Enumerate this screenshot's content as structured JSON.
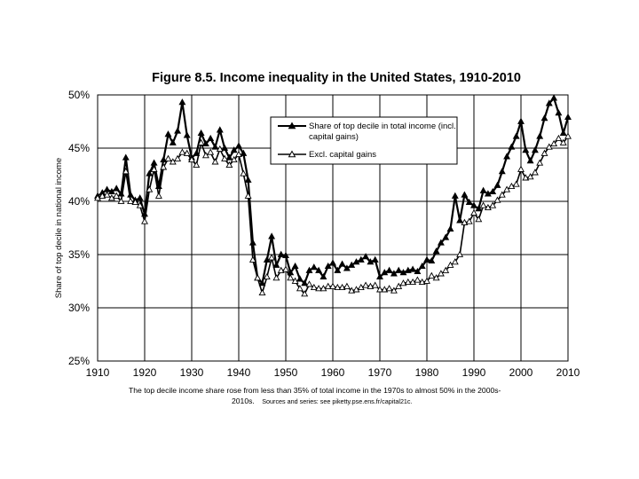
{
  "chart_data": {
    "type": "line",
    "title": "Figure 8.5. Income inequality in the United States, 1910-2010",
    "xlabel": "",
    "ylabel": "Share of top decile in national income",
    "xlim": [
      1910,
      2010
    ],
    "ylim": [
      25,
      50
    ],
    "x_ticks": [
      "1910",
      "1920",
      "1930",
      "1940",
      "1950",
      "1960",
      "1970",
      "1980",
      "1990",
      "2000",
      "2010"
    ],
    "y_ticks": [
      "25%",
      "30%",
      "35%",
      "40%",
      "45%",
      "50%"
    ],
    "grid": true,
    "legend_position": "top-center",
    "caption": {
      "line1": "The top decile income share rose from less than 35% of total income in the 1970s to almost 50% in the 2000s-",
      "line2_main": "2010s.",
      "line2_source": "Sources and series: see piketty.pse.ens.fr/capital21c."
    },
    "x": [
      1910,
      1911,
      1912,
      1913,
      1914,
      1915,
      1916,
      1917,
      1918,
      1919,
      1920,
      1921,
      1922,
      1923,
      1924,
      1925,
      1926,
      1927,
      1928,
      1929,
      1930,
      1931,
      1932,
      1933,
      1934,
      1935,
      1936,
      1937,
      1938,
      1939,
      1940,
      1941,
      1942,
      1943,
      1944,
      1945,
      1946,
      1947,
      1948,
      1949,
      1950,
      1951,
      1952,
      1953,
      1954,
      1955,
      1956,
      1957,
      1958,
      1959,
      1960,
      1961,
      1962,
      1963,
      1964,
      1965,
      1966,
      1967,
      1968,
      1969,
      1970,
      1971,
      1972,
      1973,
      1974,
      1975,
      1976,
      1977,
      1978,
      1979,
      1980,
      1981,
      1982,
      1983,
      1984,
      1985,
      1986,
      1987,
      1988,
      1989,
      1990,
      1991,
      1992,
      1993,
      1994,
      1995,
      1996,
      1997,
      1998,
      1999,
      2000,
      2001,
      2002,
      2003,
      2004,
      2005,
      2006,
      2007,
      2008,
      2009,
      2010
    ],
    "series": [
      {
        "name": "Share of top decile in total income (incl. capital gains)",
        "marker": "filled-triangle",
        "values": [
          40.5,
          40.8,
          41.1,
          40.9,
          41.2,
          40.7,
          44.1,
          40.6,
          40.1,
          40.3,
          38.8,
          42.6,
          43.6,
          41.4,
          43.9,
          46.3,
          45.5,
          46.6,
          49.3,
          46.2,
          44.1,
          44.5,
          46.4,
          45.4,
          45.9,
          45.1,
          46.7,
          45.0,
          44.1,
          44.8,
          45.2,
          44.5,
          42.0,
          36.1,
          32.8,
          32.3,
          34.5,
          36.7,
          34.0,
          35.0,
          34.9,
          33.3,
          33.9,
          32.7,
          32.3,
          33.5,
          33.8,
          33.5,
          32.9,
          33.9,
          34.2,
          33.5,
          34.1,
          33.7,
          34.0,
          34.3,
          34.5,
          34.8,
          34.3,
          34.5,
          32.9,
          33.3,
          33.5,
          33.2,
          33.5,
          33.3,
          33.5,
          33.6,
          33.4,
          33.9,
          34.5,
          34.4,
          35.3,
          36.1,
          36.6,
          37.4,
          40.5,
          38.2,
          40.6,
          39.9,
          39.6,
          39.3,
          41.0,
          40.7,
          40.9,
          41.5,
          42.8,
          44.2,
          45.1,
          46.1,
          47.5,
          44.8,
          43.8,
          44.8,
          46.1,
          47.8,
          49.2,
          49.7,
          48.3,
          46.4,
          47.9
        ]
      },
      {
        "name": "Excl. capital gains",
        "marker": "hollow-triangle",
        "values": [
          40.3,
          40.5,
          40.6,
          40.3,
          40.5,
          40.0,
          42.8,
          40.0,
          39.9,
          39.6,
          38.1,
          41.1,
          43.0,
          40.5,
          43.2,
          44.0,
          43.7,
          44.0,
          44.6,
          44.5,
          43.9,
          43.4,
          45.5,
          44.3,
          44.6,
          43.7,
          44.9,
          44.0,
          43.4,
          43.9,
          44.4,
          42.6,
          40.5,
          34.5,
          32.8,
          31.4,
          32.9,
          34.7,
          32.8,
          33.5,
          33.6,
          32.8,
          32.5,
          31.8,
          31.3,
          32.2,
          31.9,
          31.8,
          31.8,
          32.0,
          32.0,
          31.9,
          31.9,
          32.0,
          31.6,
          31.7,
          31.9,
          32.1,
          32.0,
          32.1,
          31.7,
          31.7,
          31.8,
          31.6,
          32.0,
          32.3,
          32.4,
          32.4,
          32.6,
          32.4,
          32.5,
          33.0,
          32.8,
          33.2,
          33.5,
          34.0,
          34.3,
          35.0,
          38.0,
          38.1,
          38.9,
          38.3,
          39.6,
          39.4,
          39.6,
          40.1,
          40.6,
          41.1,
          41.4,
          41.6,
          43.0,
          42.2,
          42.3,
          42.7,
          43.6,
          44.5,
          45.1,
          45.4,
          45.9,
          45.5,
          46.1
        ]
      }
    ]
  }
}
